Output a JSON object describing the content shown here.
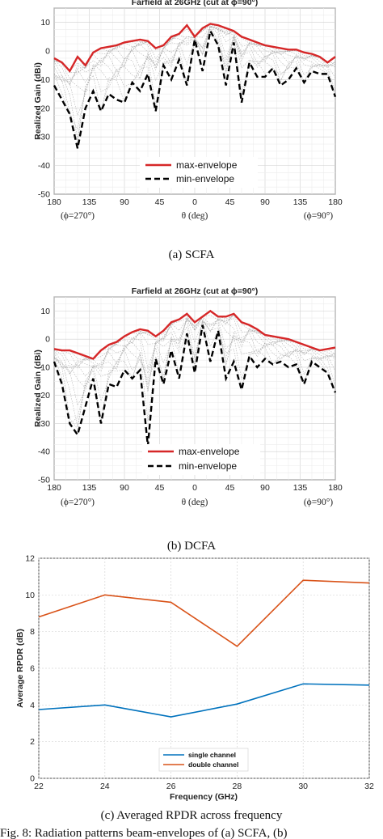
{
  "chart_data": [
    {
      "type": "line",
      "title": "Farfield at 26GHz (cut at ϕ=90°)",
      "xlabel": "θ (deg)",
      "ylabel": "Realized Gain (dBi)",
      "x_tick_labels": [
        "180",
        "135",
        "90",
        "45",
        "0",
        "45",
        "90",
        "135",
        "180"
      ],
      "x_sub_labels": {
        "left": "(ϕ=270°)",
        "right": "(ϕ=90°)"
      },
      "ylim": [
        -50,
        15
      ],
      "yticks": [
        10,
        0,
        -10,
        -20,
        -30,
        -40,
        -50
      ],
      "grid": true,
      "legend_position": "bottom-left",
      "caption": "(a) SCFA",
      "x": [
        -180,
        -170,
        -160,
        -150,
        -140,
        -130,
        -120,
        -110,
        -100,
        -90,
        -80,
        -70,
        -60,
        -50,
        -40,
        -30,
        -20,
        -10,
        0,
        10,
        20,
        30,
        40,
        50,
        60,
        70,
        80,
        90,
        100,
        110,
        120,
        130,
        140,
        150,
        160,
        170,
        180
      ],
      "series": [
        {
          "name": "max-envelope",
          "color": "#d62728",
          "values": [
            -2.5,
            -4,
            -7,
            -2,
            -5,
            -0.5,
            1,
            1.5,
            2,
            3,
            3.5,
            4,
            3.5,
            1,
            2,
            5,
            6,
            9,
            5,
            8,
            9.5,
            9,
            8,
            7,
            5,
            4,
            3,
            2,
            1.5,
            1,
            0.5,
            0.5,
            -0.5,
            -1,
            -2,
            -4,
            -2
          ]
        },
        {
          "name": "min-envelope",
          "color": "#000000",
          "values": [
            -12,
            -17,
            -22,
            -34,
            -20,
            -14,
            -21,
            -15,
            -17,
            -18,
            -11,
            -14,
            -8,
            -21,
            -5,
            -10,
            -3,
            -12,
            4,
            -7,
            7,
            2,
            -12,
            3,
            -18,
            -4,
            -9,
            -9,
            -6,
            -12,
            -10,
            -6,
            -11,
            -7,
            -8,
            -8,
            -16
          ]
        }
      ]
    },
    {
      "type": "line",
      "title": "Farfield at 26GHz (cut at ϕ=90°)",
      "xlabel": "θ (deg)",
      "ylabel": "Realized Gain (dBi)",
      "x_tick_labels": [
        "180",
        "135",
        "90",
        "45",
        "0",
        "45",
        "90",
        "135",
        "180"
      ],
      "x_sub_labels": {
        "left": "(ϕ=270°)",
        "right": "(ϕ=90°)"
      },
      "ylim": [
        -50,
        15
      ],
      "yticks": [
        10,
        0,
        -10,
        -20,
        -30,
        -40,
        -50
      ],
      "grid": true,
      "legend_position": "bottom-left",
      "caption": "(b) DCFA",
      "x": [
        -180,
        -170,
        -160,
        -150,
        -140,
        -130,
        -120,
        -110,
        -100,
        -90,
        -80,
        -70,
        -60,
        -50,
        -40,
        -30,
        -20,
        -10,
        0,
        10,
        20,
        30,
        40,
        50,
        60,
        70,
        80,
        90,
        100,
        110,
        120,
        130,
        140,
        150,
        160,
        170,
        180
      ],
      "series": [
        {
          "name": "max-envelope",
          "color": "#d62728",
          "values": [
            -3.5,
            -4,
            -4,
            -5,
            -6,
            -7,
            -4,
            -2,
            -1,
            1,
            2.5,
            3.5,
            3,
            1,
            3,
            6,
            7,
            9,
            6,
            8,
            10,
            8,
            8,
            9,
            6,
            5,
            3.5,
            1.5,
            1,
            0.5,
            0,
            -1,
            -2,
            -3,
            -4,
            -3.5,
            -3
          ]
        },
        {
          "name": "min-envelope",
          "color": "#000000",
          "values": [
            -8,
            -16,
            -30,
            -34,
            -24,
            -14,
            -30,
            -16,
            -17,
            -11,
            -14,
            -11,
            -38,
            -7,
            -16,
            -4,
            -14,
            2,
            -12,
            5,
            -8,
            3,
            -14,
            -8,
            -18,
            -6,
            -10,
            -7,
            -9,
            -8,
            -10,
            -9,
            -16,
            -8,
            -10,
            -12,
            -19
          ]
        }
      ]
    },
    {
      "type": "line",
      "title": "",
      "xlabel": "Frequency (GHz)",
      "ylabel": "Average RPDR (dB)",
      "xlim": [
        22,
        32
      ],
      "ylim": [
        0,
        12
      ],
      "xticks": [
        22,
        24,
        26,
        28,
        30,
        32
      ],
      "yticks": [
        0,
        2,
        4,
        6,
        8,
        10,
        12
      ],
      "grid": true,
      "legend_position": "bottom-center",
      "caption": "(c) Averaged RPDR across frequency",
      "x": [
        22,
        24,
        26,
        28,
        30,
        32
      ],
      "series": [
        {
          "name": "single channel",
          "color": "#0072bd",
          "values": [
            3.75,
            4.0,
            3.35,
            4.05,
            5.15,
            5.08
          ]
        },
        {
          "name": "double channel",
          "color": "#d95319",
          "values": [
            8.8,
            10.0,
            9.6,
            7.2,
            10.8,
            10.65
          ]
        }
      ]
    }
  ],
  "footer_text": "Fig. 8: Radiation patterns beam-envelopes of (a) SCFA, (b)"
}
